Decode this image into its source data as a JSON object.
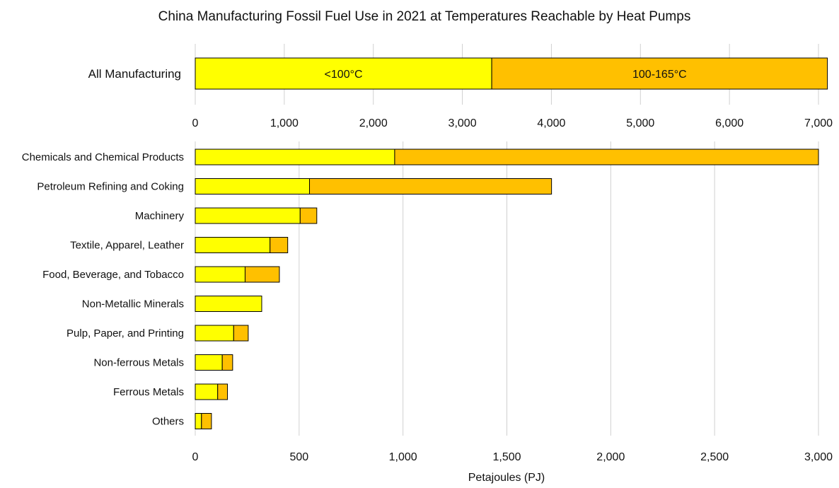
{
  "chart_data": [
    {
      "type": "bar",
      "orientation": "horizontal",
      "stacked": true,
      "title": "China Manufacturing Fossil Fuel Use in 2021 at Temperatures Reachable by Heat Pumps",
      "categories": [
        "All Manufacturing"
      ],
      "series": [
        {
          "name": "<100°C",
          "values": [
            3330
          ],
          "color": "#FFFF00"
        },
        {
          "name": "100-165°C",
          "values": [
            3770
          ],
          "color": "#FFC000"
        }
      ],
      "xlim": [
        0,
        7000
      ],
      "xticks": [
        0,
        1000,
        2000,
        3000,
        4000,
        5000,
        6000,
        7000
      ],
      "xtick_labels": [
        "0",
        "1,000",
        "2,000",
        "3,000",
        "4,000",
        "5,000",
        "6,000",
        "7,000"
      ],
      "grid": true,
      "legend": "none (labels inside bar segments)"
    },
    {
      "type": "bar",
      "orientation": "horizontal",
      "stacked": true,
      "xlabel": "Petajoules (PJ)",
      "categories": [
        "Chemicals and Chemical Products",
        "Petroleum Refining and Coking",
        "Machinery",
        "Textile, Apparel, Leather",
        "Food, Beverage, and Tobacco",
        "Non-Metallic Minerals",
        "Pulp, Paper, and Printing",
        "Non-ferrous Metals",
        "Ferrous Metals",
        "Others"
      ],
      "series": [
        {
          "values": [
            960,
            550,
            505,
            360,
            240,
            320,
            185,
            130,
            108,
            30
          ],
          "color": "#FFFF00"
        },
        {
          "values": [
            2040,
            1165,
            80,
            85,
            165,
            0,
            70,
            50,
            47,
            48
          ],
          "color": "#FFC000"
        }
      ],
      "xlim": [
        0,
        3000
      ],
      "xticks": [
        0,
        500,
        1000,
        1500,
        2000,
        2500,
        3000
      ],
      "xtick_labels": [
        "0",
        "500",
        "1,000",
        "1,500",
        "2,000",
        "2,500",
        "3,000"
      ],
      "grid": true
    }
  ]
}
